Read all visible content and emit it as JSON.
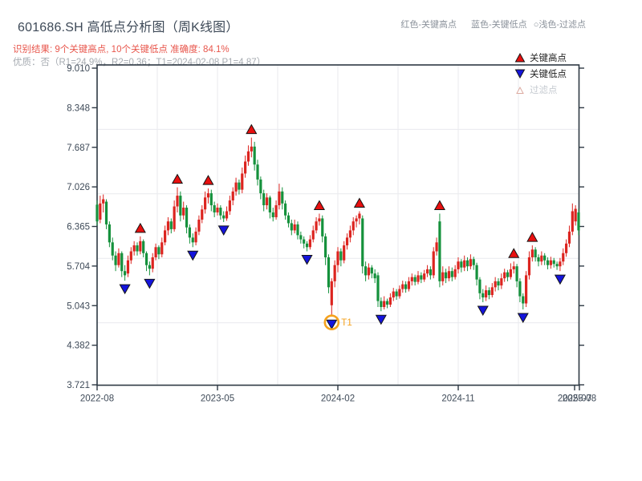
{
  "header": {
    "title": "601686.SH 高低点分析图（周K线图）",
    "result_line": "识别结果: 9个关键高点, 10个关键低点  准确度: 84.1%",
    "quality_line": "优质：否（R1=24.9%，R2=0.36；T1=2024-02-08 P1=4.87）",
    "note_high": "红色-关键高点",
    "note_low": "蓝色-关键低点",
    "note_filtered": "○浅色-过滤点"
  },
  "legend": {
    "items": [
      {
        "label": "关键高点",
        "marker": "red-up-triangle"
      },
      {
        "label": "关键低点",
        "marker": "blue-down-triangle"
      },
      {
        "label": "过滤点",
        "marker": "light-up-triangle"
      }
    ]
  },
  "colors": {
    "up": "#dc241f",
    "down": "#15913c",
    "marker_high": "#e80f0f",
    "marker_low": "#1414dc",
    "marker_stroke": "#151515",
    "axis": "#2e3944",
    "grid": "#e9eaee",
    "tick_label": "#3e4a58",
    "t1": "#f5a21d",
    "filtered_fill": "#ffffff",
    "filtered_stroke": "#dcaaa0"
  },
  "chart_data": {
    "type": "candlestick",
    "title": "601686.SH 周K线 高低点分析",
    "ylim": [
      3.721,
      9.01
    ],
    "y_ticks": [
      "9.010",
      "8.348",
      "7.687",
      "7.026",
      "6.365",
      "5.704",
      "5.043",
      "4.382",
      "3.721"
    ],
    "x_ticks": [
      {
        "label": "2022-08",
        "x": 121
      },
      {
        "label": "2023-05",
        "x": 271
      },
      {
        "label": "2024-02",
        "x": 421
      },
      {
        "label": "2024-11",
        "x": 571
      },
      {
        "label": "2025-07",
        "x": 716
      },
      {
        "label": "2025-08",
        "x": 722
      }
    ],
    "candles": [
      [
        6.73,
        6.8,
        6.38,
        6.45
      ],
      [
        6.48,
        6.88,
        6.42,
        6.75
      ],
      [
        6.75,
        6.9,
        6.6,
        6.82
      ],
      [
        6.78,
        6.82,
        6.32,
        6.4
      ],
      [
        6.4,
        6.45,
        6.02,
        6.1
      ],
      [
        6.1,
        6.18,
        5.8,
        5.88
      ],
      [
        5.88,
        5.95,
        5.62,
        5.72
      ],
      [
        5.72,
        6.0,
        5.68,
        5.92
      ],
      [
        5.92,
        5.95,
        5.52,
        5.62
      ],
      [
        5.62,
        5.72,
        5.46,
        5.55
      ],
      [
        5.58,
        5.88,
        5.52,
        5.8
      ],
      [
        5.8,
        6.02,
        5.74,
        5.95
      ],
      [
        5.95,
        6.12,
        5.88,
        6.05
      ],
      [
        6.05,
        6.1,
        5.88,
        5.95
      ],
      [
        5.95,
        6.2,
        5.9,
        6.12
      ],
      [
        6.12,
        6.15,
        5.85,
        5.92
      ],
      [
        5.92,
        5.95,
        5.62,
        5.72
      ],
      [
        5.72,
        5.78,
        5.55,
        5.66
      ],
      [
        5.66,
        5.92,
        5.6,
        5.85
      ],
      [
        5.85,
        6.08,
        5.8,
        6.02
      ],
      [
        6.02,
        6.05,
        5.82,
        5.9
      ],
      [
        5.9,
        6.18,
        5.85,
        6.1
      ],
      [
        6.1,
        6.38,
        6.05,
        6.3
      ],
      [
        6.3,
        6.52,
        6.22,
        6.45
      ],
      [
        6.45,
        6.5,
        6.25,
        6.32
      ],
      [
        6.32,
        6.8,
        6.28,
        6.7
      ],
      [
        6.7,
        7.02,
        6.6,
        6.88
      ],
      [
        6.88,
        6.95,
        6.45,
        6.55
      ],
      [
        6.55,
        6.78,
        6.48,
        6.68
      ],
      [
        6.68,
        6.72,
        6.25,
        6.35
      ],
      [
        6.35,
        6.4,
        6.08,
        6.18
      ],
      [
        6.18,
        6.25,
        6.02,
        6.1
      ],
      [
        6.1,
        6.35,
        6.05,
        6.28
      ],
      [
        6.28,
        6.55,
        6.22,
        6.48
      ],
      [
        6.48,
        6.72,
        6.42,
        6.65
      ],
      [
        6.65,
        6.95,
        6.58,
        6.85
      ],
      [
        6.85,
        7.0,
        6.75,
        6.92
      ],
      [
        6.92,
        6.98,
        6.62,
        6.72
      ],
      [
        6.72,
        6.78,
        6.52,
        6.6
      ],
      [
        6.6,
        6.75,
        6.55,
        6.68
      ],
      [
        6.68,
        6.72,
        6.48,
        6.55
      ],
      [
        6.55,
        6.62,
        6.44,
        6.5
      ],
      [
        6.5,
        6.7,
        6.46,
        6.62
      ],
      [
        6.62,
        6.88,
        6.56,
        6.8
      ],
      [
        6.8,
        7.02,
        6.72,
        6.95
      ],
      [
        6.95,
        7.18,
        6.88,
        7.1
      ],
      [
        7.1,
        7.15,
        6.9,
        6.98
      ],
      [
        6.98,
        7.35,
        6.92,
        7.25
      ],
      [
        7.25,
        7.55,
        7.18,
        7.45
      ],
      [
        7.45,
        7.72,
        7.38,
        7.62
      ],
      [
        7.62,
        7.85,
        7.52,
        7.7
      ],
      [
        7.7,
        7.78,
        7.3,
        7.4
      ],
      [
        7.4,
        7.48,
        7.05,
        7.15
      ],
      [
        7.15,
        7.2,
        6.82,
        6.92
      ],
      [
        6.92,
        6.98,
        6.62,
        6.72
      ],
      [
        6.72,
        6.92,
        6.65,
        6.85
      ],
      [
        6.85,
        6.88,
        6.5,
        6.6
      ],
      [
        6.6,
        6.68,
        6.45,
        6.52
      ],
      [
        6.52,
        6.8,
        6.48,
        6.72
      ],
      [
        6.72,
        7.08,
        6.65,
        6.95
      ],
      [
        6.95,
        7.02,
        6.65,
        6.75
      ],
      [
        6.75,
        6.8,
        6.48,
        6.55
      ],
      [
        6.55,
        6.6,
        6.35,
        6.42
      ],
      [
        6.42,
        6.48,
        6.22,
        6.3
      ],
      [
        6.3,
        6.48,
        6.25,
        6.4
      ],
      [
        6.4,
        6.45,
        6.15,
        6.22
      ],
      [
        6.22,
        6.28,
        6.08,
        6.15
      ],
      [
        6.15,
        6.2,
        6.0,
        6.08
      ],
      [
        6.08,
        6.12,
        5.95,
        6.02
      ],
      [
        6.02,
        6.22,
        5.98,
        6.15
      ],
      [
        6.15,
        6.38,
        6.1,
        6.3
      ],
      [
        6.3,
        6.52,
        6.25,
        6.45
      ],
      [
        6.45,
        6.58,
        6.38,
        6.5
      ],
      [
        6.5,
        6.55,
        6.1,
        6.2
      ],
      [
        6.2,
        6.25,
        5.72,
        5.85
      ],
      [
        5.85,
        5.9,
        5.25,
        5.35
      ],
      [
        5.05,
        5.5,
        4.87,
        5.45
      ],
      [
        5.45,
        5.8,
        5.35,
        5.72
      ],
      [
        5.72,
        6.02,
        5.6,
        5.95
      ],
      [
        5.95,
        6.0,
        5.7,
        5.8
      ],
      [
        5.8,
        6.12,
        5.75,
        6.05
      ],
      [
        6.05,
        6.25,
        5.98,
        6.18
      ],
      [
        6.18,
        6.38,
        6.1,
        6.3
      ],
      [
        6.3,
        6.52,
        6.22,
        6.45
      ],
      [
        6.45,
        6.55,
        6.35,
        6.5
      ],
      [
        6.5,
        6.62,
        6.4,
        6.58
      ],
      [
        6.5,
        6.55,
        5.58,
        5.7
      ],
      [
        5.7,
        5.78,
        5.45,
        5.55
      ],
      [
        5.55,
        5.75,
        5.48,
        5.68
      ],
      [
        5.68,
        5.72,
        5.5,
        5.58
      ],
      [
        5.58,
        5.65,
        5.42,
        5.5
      ],
      [
        5.55,
        5.6,
        5.02,
        5.12
      ],
      [
        5.12,
        5.18,
        4.95,
        5.02
      ],
      [
        5.02,
        5.2,
        4.98,
        5.12
      ],
      [
        5.12,
        5.16,
        5.0,
        5.06
      ],
      [
        5.06,
        5.25,
        5.02,
        5.18
      ],
      [
        5.18,
        5.34,
        5.12,
        5.28
      ],
      [
        5.28,
        5.32,
        5.14,
        5.2
      ],
      [
        5.2,
        5.38,
        5.16,
        5.32
      ],
      [
        5.32,
        5.46,
        5.26,
        5.4
      ],
      [
        5.4,
        5.45,
        5.26,
        5.32
      ],
      [
        5.32,
        5.52,
        5.28,
        5.45
      ],
      [
        5.45,
        5.58,
        5.38,
        5.52
      ],
      [
        5.52,
        5.56,
        5.38,
        5.44
      ],
      [
        5.44,
        5.62,
        5.4,
        5.55
      ],
      [
        5.55,
        5.6,
        5.42,
        5.48
      ],
      [
        5.48,
        5.64,
        5.44,
        5.58
      ],
      [
        5.58,
        5.72,
        5.52,
        5.65
      ],
      [
        5.65,
        5.7,
        5.48,
        5.55
      ],
      [
        5.55,
        6.02,
        5.5,
        5.95
      ],
      [
        5.95,
        6.18,
        5.88,
        6.1
      ],
      [
        6.45,
        6.58,
        5.35,
        5.45
      ],
      [
        5.45,
        5.7,
        5.38,
        5.6
      ],
      [
        5.6,
        5.66,
        5.42,
        5.5
      ],
      [
        5.5,
        5.7,
        5.45,
        5.62
      ],
      [
        5.62,
        5.68,
        5.45,
        5.52
      ],
      [
        5.52,
        5.72,
        5.48,
        5.65
      ],
      [
        5.65,
        5.85,
        5.58,
        5.78
      ],
      [
        5.78,
        5.82,
        5.6,
        5.68
      ],
      [
        5.68,
        5.88,
        5.62,
        5.8
      ],
      [
        5.8,
        5.85,
        5.62,
        5.7
      ],
      [
        5.7,
        5.9,
        5.65,
        5.82
      ],
      [
        5.82,
        5.86,
        5.64,
        5.72
      ],
      [
        5.72,
        5.76,
        5.38,
        5.48
      ],
      [
        5.48,
        5.52,
        5.15,
        5.25
      ],
      [
        5.25,
        5.32,
        5.1,
        5.18
      ],
      [
        5.18,
        5.38,
        5.12,
        5.3
      ],
      [
        5.3,
        5.35,
        5.15,
        5.22
      ],
      [
        5.22,
        5.42,
        5.18,
        5.35
      ],
      [
        5.35,
        5.52,
        5.28,
        5.45
      ],
      [
        5.45,
        5.5,
        5.3,
        5.38
      ],
      [
        5.38,
        5.58,
        5.32,
        5.5
      ],
      [
        5.5,
        5.66,
        5.44,
        5.6
      ],
      [
        5.6,
        5.64,
        5.45,
        5.52
      ],
      [
        5.52,
        5.75,
        5.48,
        5.65
      ],
      [
        5.65,
        5.78,
        5.58,
        5.7
      ],
      [
        5.7,
        5.74,
        5.35,
        5.45
      ],
      [
        5.45,
        5.5,
        5.1,
        5.2
      ],
      [
        5.2,
        5.25,
        4.98,
        5.08
      ],
      [
        5.08,
        5.62,
        5.02,
        5.55
      ],
      [
        5.55,
        5.95,
        5.48,
        5.85
      ],
      [
        5.85,
        6.05,
        5.78,
        5.98
      ],
      [
        5.98,
        6.02,
        5.78,
        5.85
      ],
      [
        5.85,
        5.9,
        5.7,
        5.78
      ],
      [
        5.78,
        5.95,
        5.72,
        5.88
      ],
      [
        5.88,
        5.92,
        5.72,
        5.8
      ],
      [
        5.8,
        5.85,
        5.65,
        5.72
      ],
      [
        5.72,
        5.86,
        5.66,
        5.8
      ],
      [
        5.8,
        5.84,
        5.68,
        5.74
      ],
      [
        5.74,
        5.78,
        5.64,
        5.7
      ],
      [
        5.7,
        5.84,
        5.62,
        5.78
      ],
      [
        5.78,
        6.0,
        5.72,
        5.92
      ],
      [
        5.92,
        6.15,
        5.86,
        6.08
      ],
      [
        6.08,
        6.38,
        6.02,
        6.28
      ],
      [
        6.28,
        6.75,
        6.22,
        6.62
      ],
      [
        6.45,
        6.72,
        6.38,
        6.66
      ],
      [
        6.6,
        6.66,
        6.22,
        6.3
      ]
    ],
    "key_high_weeks": [
      14,
      26,
      36,
      50,
      72,
      85,
      111,
      135,
      141
    ],
    "key_low_weeks": [
      9,
      17,
      31,
      41,
      68,
      76,
      92,
      125,
      138,
      150
    ],
    "t1": {
      "week": 76,
      "label": "T1",
      "price": 4.87
    }
  }
}
